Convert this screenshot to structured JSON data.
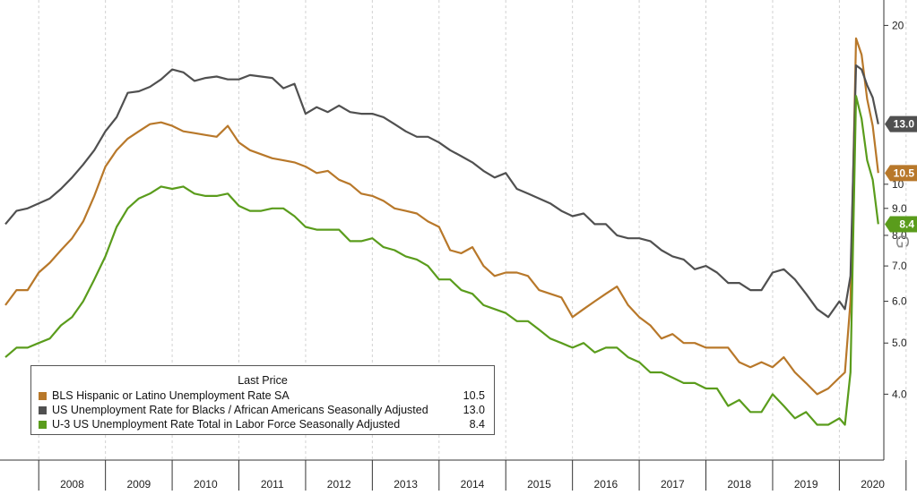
{
  "chart_data": {
    "type": "line",
    "y_scale": "log",
    "ylim": [
      3.0,
      22.0
    ],
    "xlim": [
      "2007-07",
      "2020-09"
    ],
    "x_ticks": [
      "2008",
      "2009",
      "2010",
      "2011",
      "2012",
      "2013",
      "2014",
      "2015",
      "2016",
      "2017",
      "2018",
      "2019",
      "2020"
    ],
    "y_ticks": [
      "4.0",
      "5.0",
      "6.0",
      "7.0",
      "8.0",
      "9.0",
      "10",
      "20"
    ],
    "grid": "vertical",
    "legend": {
      "placement": "bottom-left",
      "title": "Last Price"
    },
    "series": [
      {
        "name": "BLS Hispanic or Latino Unemployment Rate SA",
        "color": "#b8782a",
        "last_value": "10.5",
        "x": [
          "2007-07",
          "2007-09",
          "2007-11",
          "2008-01",
          "2008-03",
          "2008-05",
          "2008-07",
          "2008-09",
          "2008-11",
          "2009-01",
          "2009-03",
          "2009-05",
          "2009-07",
          "2009-09",
          "2009-11",
          "2010-01",
          "2010-03",
          "2010-05",
          "2010-07",
          "2010-09",
          "2010-11",
          "2011-01",
          "2011-03",
          "2011-05",
          "2011-07",
          "2011-09",
          "2011-11",
          "2012-01",
          "2012-03",
          "2012-05",
          "2012-07",
          "2012-09",
          "2012-11",
          "2013-01",
          "2013-03",
          "2013-05",
          "2013-07",
          "2013-09",
          "2013-11",
          "2014-01",
          "2014-03",
          "2014-05",
          "2014-07",
          "2014-09",
          "2014-11",
          "2015-01",
          "2015-03",
          "2015-05",
          "2015-07",
          "2015-09",
          "2015-11",
          "2016-01",
          "2016-03",
          "2016-05",
          "2016-07",
          "2016-09",
          "2016-11",
          "2017-01",
          "2017-03",
          "2017-05",
          "2017-07",
          "2017-09",
          "2017-11",
          "2018-01",
          "2018-03",
          "2018-05",
          "2018-07",
          "2018-09",
          "2018-11",
          "2019-01",
          "2019-03",
          "2019-05",
          "2019-07",
          "2019-09",
          "2019-11",
          "2020-01",
          "2020-02",
          "2020-03",
          "2020-04",
          "2020-05",
          "2020-06",
          "2020-07",
          "2020-08"
        ],
        "values": [
          5.9,
          6.3,
          6.3,
          6.8,
          7.1,
          7.5,
          7.9,
          8.5,
          9.5,
          10.8,
          11.6,
          12.2,
          12.6,
          13.0,
          13.1,
          12.9,
          12.6,
          12.5,
          12.4,
          12.3,
          12.9,
          12.0,
          11.6,
          11.4,
          11.2,
          11.1,
          11.0,
          10.8,
          10.5,
          10.6,
          10.2,
          10.0,
          9.6,
          9.5,
          9.3,
          9.0,
          8.9,
          8.8,
          8.5,
          8.3,
          7.5,
          7.4,
          7.6,
          7.0,
          6.7,
          6.8,
          6.8,
          6.7,
          6.3,
          6.2,
          6.1,
          5.6,
          5.8,
          6.0,
          6.2,
          6.4,
          5.9,
          5.6,
          5.4,
          5.1,
          5.2,
          5.0,
          5.0,
          4.9,
          4.9,
          4.9,
          4.6,
          4.5,
          4.6,
          4.5,
          4.7,
          4.4,
          4.2,
          4.0,
          4.1,
          4.3,
          4.4,
          6.0,
          18.9,
          17.6,
          14.5,
          12.9,
          10.5
        ]
      },
      {
        "name": "US Unemployment Rate for Blacks / African Americans Seasonally Adjusted",
        "color": "#505050",
        "last_value": "13.0",
        "x": [
          "2007-07",
          "2007-09",
          "2007-11",
          "2008-01",
          "2008-03",
          "2008-05",
          "2008-07",
          "2008-09",
          "2008-11",
          "2009-01",
          "2009-03",
          "2009-05",
          "2009-07",
          "2009-09",
          "2009-11",
          "2010-01",
          "2010-03",
          "2010-05",
          "2010-07",
          "2010-09",
          "2010-11",
          "2011-01",
          "2011-03",
          "2011-05",
          "2011-07",
          "2011-09",
          "2011-11",
          "2012-01",
          "2012-03",
          "2012-05",
          "2012-07",
          "2012-09",
          "2012-11",
          "2013-01",
          "2013-03",
          "2013-05",
          "2013-07",
          "2013-09",
          "2013-11",
          "2014-01",
          "2014-03",
          "2014-05",
          "2014-07",
          "2014-09",
          "2014-11",
          "2015-01",
          "2015-03",
          "2015-05",
          "2015-07",
          "2015-09",
          "2015-11",
          "2016-01",
          "2016-03",
          "2016-05",
          "2016-07",
          "2016-09",
          "2016-11",
          "2017-01",
          "2017-03",
          "2017-05",
          "2017-07",
          "2017-09",
          "2017-11",
          "2018-01",
          "2018-03",
          "2018-05",
          "2018-07",
          "2018-09",
          "2018-11",
          "2019-01",
          "2019-03",
          "2019-05",
          "2019-07",
          "2019-09",
          "2019-11",
          "2020-01",
          "2020-02",
          "2020-03",
          "2020-04",
          "2020-05",
          "2020-06",
          "2020-07",
          "2020-08"
        ],
        "values": [
          8.4,
          8.9,
          9.0,
          9.2,
          9.4,
          9.8,
          10.3,
          10.9,
          11.6,
          12.6,
          13.4,
          14.9,
          15.0,
          15.3,
          15.8,
          16.5,
          16.3,
          15.7,
          15.9,
          16.0,
          15.8,
          15.8,
          16.1,
          16.0,
          15.9,
          15.2,
          15.5,
          13.6,
          14.0,
          13.7,
          14.1,
          13.7,
          13.6,
          13.6,
          13.4,
          13.0,
          12.6,
          12.3,
          12.3,
          12.0,
          11.6,
          11.3,
          11.0,
          10.6,
          10.3,
          10.5,
          9.8,
          9.6,
          9.4,
          9.2,
          8.9,
          8.7,
          8.8,
          8.4,
          8.4,
          8.0,
          7.9,
          7.9,
          7.8,
          7.5,
          7.3,
          7.2,
          6.9,
          7.0,
          6.8,
          6.5,
          6.5,
          6.3,
          6.3,
          6.8,
          6.9,
          6.6,
          6.2,
          5.8,
          5.6,
          6.0,
          5.8,
          6.7,
          16.8,
          16.5,
          15.4,
          14.6,
          13.0
        ]
      },
      {
        "name": "U-3 US Unemployment Rate Total in Labor Force Seasonally Adjusted",
        "color": "#5a9c1c",
        "last_value": "8.4",
        "x": [
          "2007-07",
          "2007-09",
          "2007-11",
          "2008-01",
          "2008-03",
          "2008-05",
          "2008-07",
          "2008-09",
          "2008-11",
          "2009-01",
          "2009-03",
          "2009-05",
          "2009-07",
          "2009-09",
          "2009-11",
          "2010-01",
          "2010-03",
          "2010-05",
          "2010-07",
          "2010-09",
          "2010-11",
          "2011-01",
          "2011-03",
          "2011-05",
          "2011-07",
          "2011-09",
          "2011-11",
          "2012-01",
          "2012-03",
          "2012-05",
          "2012-07",
          "2012-09",
          "2012-11",
          "2013-01",
          "2013-03",
          "2013-05",
          "2013-07",
          "2013-09",
          "2013-11",
          "2014-01",
          "2014-03",
          "2014-05",
          "2014-07",
          "2014-09",
          "2014-11",
          "2015-01",
          "2015-03",
          "2015-05",
          "2015-07",
          "2015-09",
          "2015-11",
          "2016-01",
          "2016-03",
          "2016-05",
          "2016-07",
          "2016-09",
          "2016-11",
          "2017-01",
          "2017-03",
          "2017-05",
          "2017-07",
          "2017-09",
          "2017-11",
          "2018-01",
          "2018-03",
          "2018-05",
          "2018-07",
          "2018-09",
          "2018-11",
          "2019-01",
          "2019-03",
          "2019-05",
          "2019-07",
          "2019-09",
          "2019-11",
          "2020-01",
          "2020-02",
          "2020-03",
          "2020-04",
          "2020-05",
          "2020-06",
          "2020-07",
          "2020-08"
        ],
        "values": [
          4.7,
          4.9,
          4.9,
          5.0,
          5.1,
          5.4,
          5.6,
          6.0,
          6.6,
          7.3,
          8.3,
          9.0,
          9.4,
          9.6,
          9.9,
          9.8,
          9.9,
          9.6,
          9.5,
          9.5,
          9.6,
          9.1,
          8.9,
          8.9,
          9.0,
          9.0,
          8.7,
          8.3,
          8.2,
          8.2,
          8.2,
          7.8,
          7.8,
          7.9,
          7.6,
          7.5,
          7.3,
          7.2,
          7.0,
          6.6,
          6.6,
          6.3,
          6.2,
          5.9,
          5.8,
          5.7,
          5.5,
          5.5,
          5.3,
          5.1,
          5.0,
          4.9,
          5.0,
          4.8,
          4.9,
          4.9,
          4.7,
          4.6,
          4.4,
          4.4,
          4.3,
          4.2,
          4.2,
          4.1,
          4.1,
          3.8,
          3.9,
          3.7,
          3.7,
          4.0,
          3.8,
          3.6,
          3.7,
          3.5,
          3.5,
          3.6,
          3.5,
          4.4,
          14.7,
          13.3,
          11.1,
          10.2,
          8.4
        ]
      }
    ]
  },
  "watermark": "G"
}
